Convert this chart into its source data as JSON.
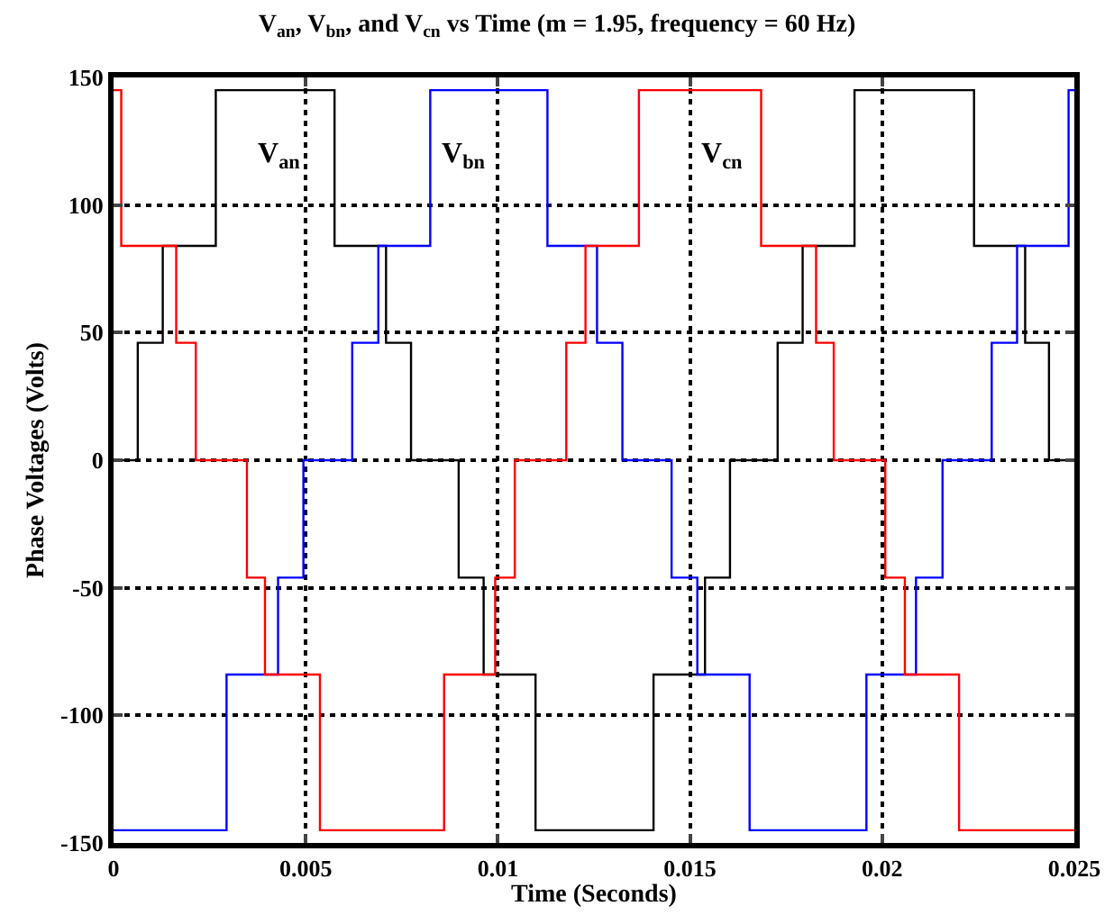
{
  "chart_data": {
    "type": "step",
    "title": "V$_{an}$, V$_{bn}$, and V$_{cn}$ vs Time (m = 1.95, frequency = 60 Hz)",
    "xlabel": "Time (Seconds)",
    "ylabel": "Phase Voltages (Volts)",
    "xlim": [
      0,
      0.025
    ],
    "xticks": [
      0,
      0.005,
      0.01,
      0.015,
      0.02,
      0.025
    ],
    "ylim": [
      -150,
      150
    ],
    "yticks": [
      -150,
      -100,
      -50,
      0,
      50,
      100,
      150
    ],
    "grid": true,
    "legend": false,
    "line_style": "solid",
    "marker": "none",
    "series": [
      {
        "name": "V$_{an}$",
        "color": "#000000",
        "x": [
          0,
          0.00063,
          0.00128,
          0.00266,
          0.00575,
          0.00709,
          0.00774,
          0.00898,
          0.00963,
          0.01098,
          0.01405,
          0.01539,
          0.01604,
          0.01728,
          0.01793,
          0.01928,
          0.02239,
          0.02372,
          0.02434,
          0.025
        ],
        "values": [
          0,
          46,
          84,
          145,
          84,
          46,
          0,
          -46,
          -84,
          -145,
          -84,
          -46,
          0,
          46,
          84,
          145,
          84,
          46,
          0,
          0
        ]
      },
      {
        "name": "V$_{bn}$",
        "color": "#0000ff",
        "x": [
          0,
          0.00294,
          0.00428,
          0.00494,
          0.00621,
          0.00689,
          0.00824,
          0.01129,
          0.01258,
          0.01324,
          0.01452,
          0.01519,
          0.01655,
          0.01959,
          0.02088,
          0.02157,
          0.02285,
          0.02351,
          0.02485,
          0.025
        ],
        "values": [
          -145,
          -84,
          -46,
          0,
          46,
          84,
          145,
          84,
          46,
          0,
          -46,
          -84,
          -145,
          -84,
          -46,
          0,
          46,
          84,
          145,
          145
        ]
      },
      {
        "name": "V$_{cn}$",
        "color": "#ff0000",
        "x": [
          0,
          0.0002,
          0.00163,
          0.00214,
          0.00347,
          0.00394,
          0.00537,
          0.0086,
          0.00993,
          0.01044,
          0.01178,
          0.01228,
          0.01367,
          0.01685,
          0.01828,
          0.01874,
          0.02008,
          0.02059,
          0.022,
          0.025
        ],
        "values": [
          145,
          84,
          46,
          0,
          -46,
          -84,
          -145,
          -84,
          -46,
          0,
          46,
          84,
          145,
          84,
          46,
          0,
          -46,
          -84,
          -145,
          -145
        ]
      }
    ]
  }
}
